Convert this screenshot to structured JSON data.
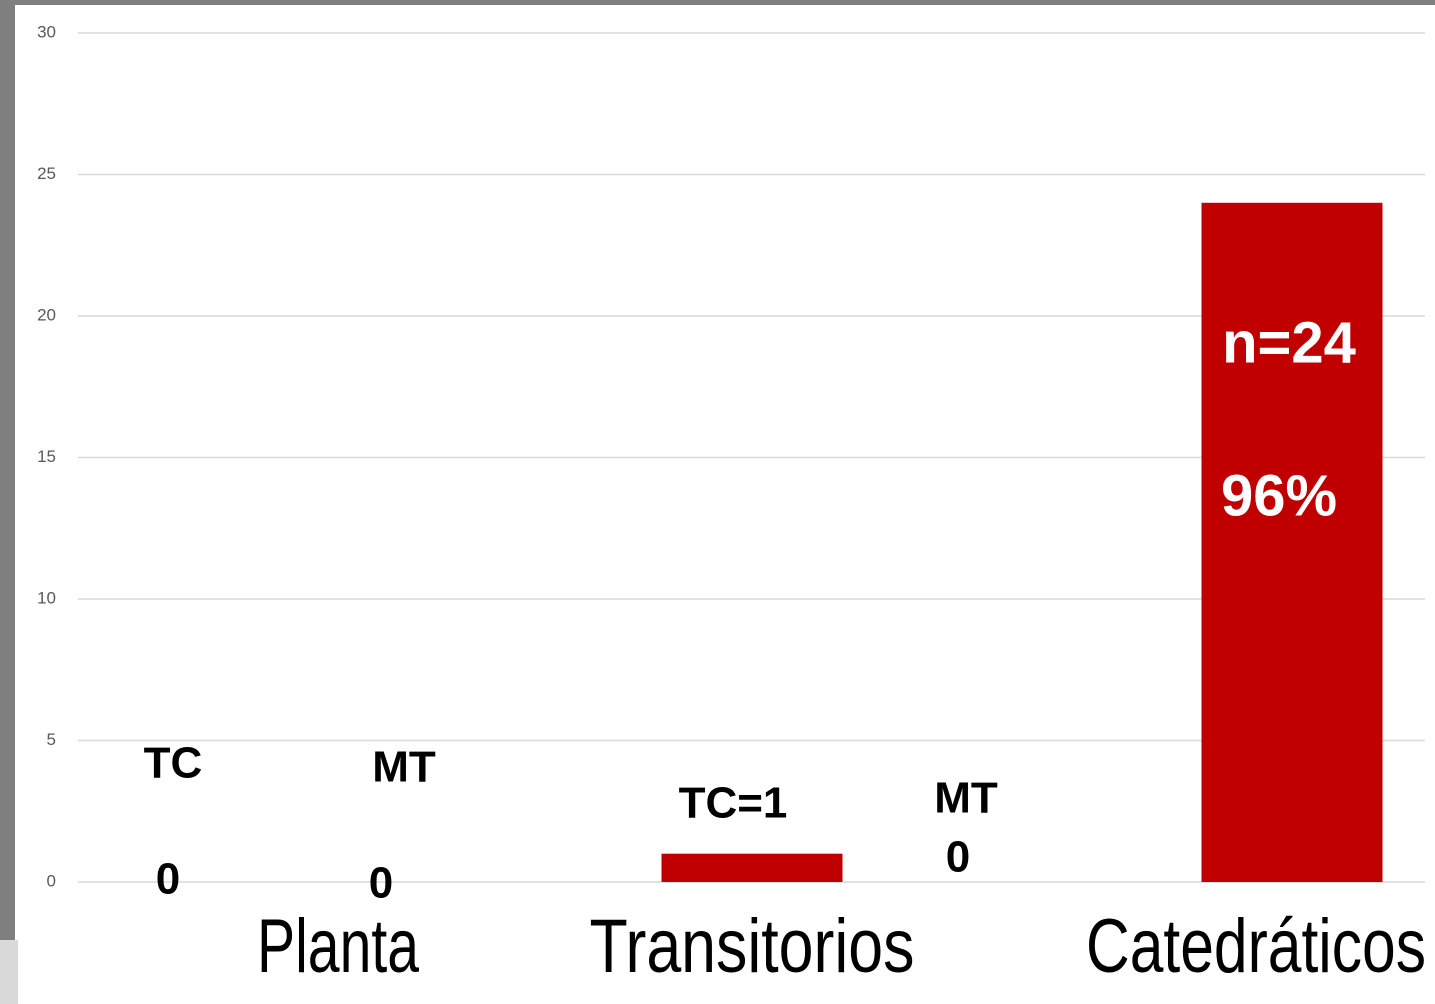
{
  "chart_data": {
    "type": "bar",
    "categories": [
      "Planta",
      "Transitorios",
      "Catedráticos"
    ],
    "values": [
      0,
      1,
      24
    ],
    "color": "#c00000",
    "ylim": [
      0,
      30
    ],
    "yticks": [
      0,
      5,
      10,
      15,
      20,
      25,
      30
    ],
    "grid": true,
    "annotations": [
      "TC",
      "0",
      "MT",
      "0",
      "TC=1",
      "MT",
      "0",
      "n=24",
      "96%"
    ]
  }
}
